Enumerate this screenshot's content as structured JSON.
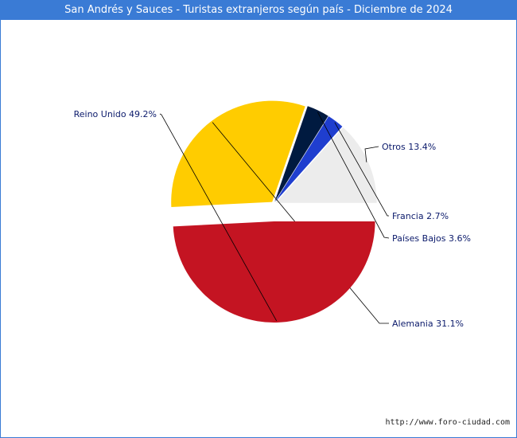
{
  "header": {
    "title": "San Andrés y Sauces - Turistas extranjeros según país - Diciembre de 2024"
  },
  "footer": {
    "source": "http://www.foro-ciudad.com"
  },
  "chart_data": {
    "type": "pie",
    "title": "San Andrés y Sauces - Turistas extranjeros según país - Diciembre de 2024",
    "slices": [
      {
        "name": "Otros",
        "value": 13.4,
        "label": "Otros 13.4%",
        "color": "#ececec"
      },
      {
        "name": "Francia",
        "value": 2.7,
        "label": "Francia 2.7%",
        "color": "#1f3ecf"
      },
      {
        "name": "Países Bajos",
        "value": 3.6,
        "label": "Países Bajos 3.6%",
        "color": "#001a40"
      },
      {
        "name": "Alemania",
        "value": 31.1,
        "label": "Alemania 31.1%",
        "color": "#ffcc00"
      },
      {
        "name": "Reino Unido",
        "value": 49.2,
        "label": "Reino Unido 49.2%",
        "color": "#c41422"
      }
    ]
  }
}
